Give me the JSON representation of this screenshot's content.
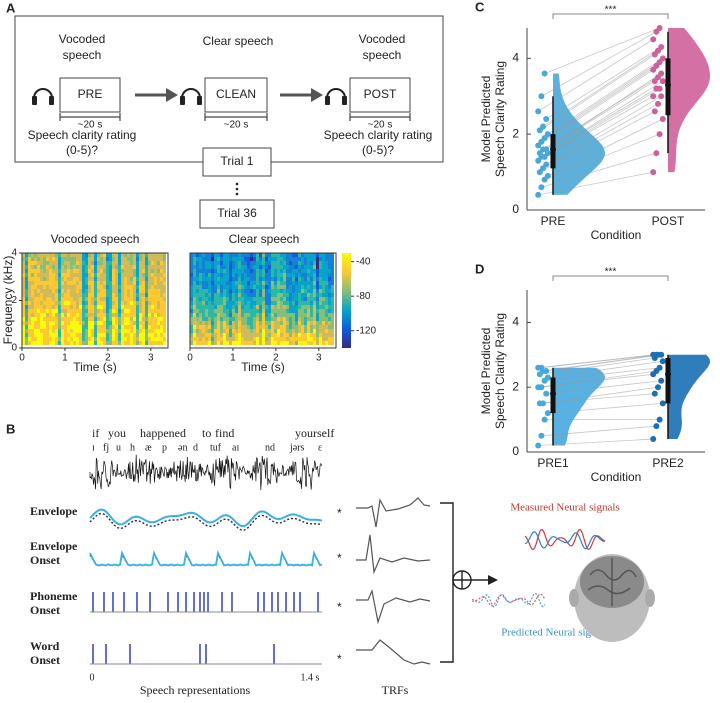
{
  "panel_a": {
    "label": "A",
    "stages": [
      {
        "heading": [
          "Vocoded",
          "speech"
        ],
        "box": "PRE",
        "duration": "~20 s",
        "question": [
          "Speech clarity rating",
          "(0-5)?"
        ]
      },
      {
        "heading": [
          "Clear speech"
        ],
        "box": "CLEAN",
        "duration": "~20 s"
      },
      {
        "heading": [
          "Vocoded",
          "speech"
        ],
        "box": "POST",
        "duration": "~20 s",
        "question": [
          "Speech clarity rating",
          "(0-5)?"
        ]
      }
    ],
    "trials": [
      "Trial 1",
      "Trial 36"
    ],
    "spectrograms": [
      {
        "title": "Vocoded speech"
      },
      {
        "title": "Clear speech"
      }
    ],
    "y_label": "Frequency (kHz)",
    "x_label": "Time (s)",
    "xlim": [
      0,
      3.4
    ],
    "xticks": [
      0,
      1,
      2,
      3
    ],
    "ylim": [
      0,
      4
    ],
    "yticks": [
      0,
      2,
      4
    ],
    "colorbar_lim": [
      -140,
      -30
    ],
    "colorbar_ticks": [
      -40,
      -80,
      -120
    ]
  },
  "panel_b": {
    "label": "B",
    "words": [
      "if",
      "you",
      "happened",
      "to",
      "find",
      "yourself"
    ],
    "phonemes": [
      "ɪ",
      "fj",
      "u",
      "h",
      "æ",
      "p",
      "ən",
      "d",
      "tuf",
      "aɪ",
      "nd",
      "jərs",
      "ɛ"
    ],
    "representations": [
      [
        "Envelope"
      ],
      [
        "Envelope",
        "Onset"
      ],
      [
        "Phoneme",
        "Onset"
      ],
      [
        "Word",
        "Onset"
      ]
    ],
    "operator": "*",
    "x_start": "0",
    "x_end": "1.4 s",
    "x_label": "Speech representations",
    "trf_label": "TRFs",
    "measured": "Measured Neural signals",
    "predicted": "Predicted Neural signals"
  },
  "chart_data": [
    {
      "type": "violin",
      "panel": "C",
      "annotation": "***",
      "y_label": [
        "Model Predicted",
        "Speech Clarity Rating"
      ],
      "x_label": "Condition",
      "categories": [
        "PRE",
        "POST"
      ],
      "colors": [
        "#4aa8d8",
        "#d0609a"
      ],
      "ylim": [
        0,
        4.8
      ],
      "yticks": [
        0,
        2,
        4
      ],
      "values": [
        [
          0.4,
          0.6,
          0.8,
          0.9,
          1.0,
          1.1,
          1.2,
          1.3,
          1.4,
          1.4,
          1.5,
          1.5,
          1.6,
          1.6,
          1.7,
          1.8,
          1.9,
          2.0,
          2.1,
          2.2,
          2.4,
          2.6,
          3.0,
          3.6
        ],
        [
          1.0,
          1.5,
          2.0,
          2.4,
          2.6,
          2.8,
          3.0,
          3.0,
          3.2,
          3.2,
          3.4,
          3.4,
          3.5,
          3.6,
          3.7,
          3.8,
          3.9,
          4.0,
          4.1,
          4.2,
          4.3,
          4.5,
          4.7,
          4.8
        ]
      ],
      "boxes": [
        {
          "median": 1.6,
          "q1": 1.1,
          "q3": 2.0,
          "low": 0.4,
          "high": 3.0
        },
        {
          "median": 3.3,
          "q1": 2.5,
          "q3": 4.0,
          "low": 1.5,
          "high": 4.7
        }
      ]
    },
    {
      "type": "violin",
      "panel": "D",
      "annotation": "***",
      "y_label": [
        "Model Predicted",
        "Speech Clarity Rating"
      ],
      "x_label": "Condition",
      "categories": [
        "PRE1",
        "PRE2"
      ],
      "colors": [
        "#45a9e0",
        "#1a6fb5"
      ],
      "ylim": [
        0,
        5
      ],
      "yticks": [
        0,
        2,
        4
      ],
      "values": [
        [
          0.2,
          0.5,
          1.0,
          1.2,
          1.5,
          1.5,
          1.8,
          2.0,
          2.0,
          2.2,
          2.3,
          2.4,
          2.5,
          2.5,
          2.6,
          2.6
        ],
        [
          0.4,
          0.8,
          1.0,
          1.5,
          1.8,
          2.0,
          2.2,
          2.4,
          2.5,
          2.6,
          2.8,
          2.9,
          3.0,
          3.0,
          3.0,
          3.0
        ]
      ],
      "boxes": [
        {
          "median": 1.8,
          "q1": 1.2,
          "q3": 2.3,
          "low": 0.2,
          "high": 2.6
        },
        {
          "median": 2.4,
          "q1": 1.5,
          "q3": 2.9,
          "low": 0.4,
          "high": 3.0
        }
      ]
    }
  ]
}
